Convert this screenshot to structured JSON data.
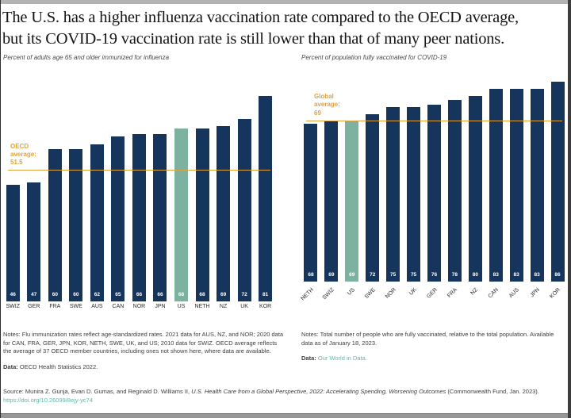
{
  "header": {
    "title_lines": [
      "The U.S. has a higher influenza vaccination rate compared to the OECD average,",
      "but its COVID-19 vaccination rate is still lower than that of many peer nations."
    ]
  },
  "colors": {
    "bar": "#16355c",
    "highlight": "#7db2a0",
    "average_line": "#e2a33b",
    "link": "#52bcab"
  },
  "chart_data": [
    {
      "type": "bar",
      "title": "Percent of adults age 65 and older immunized for influenza",
      "categories": [
        "SWIZ",
        "GER",
        "FRA",
        "SWE",
        "AUS",
        "CAN",
        "NOR",
        "JPN",
        "US",
        "NETH",
        "NZ",
        "UK",
        "KOR"
      ],
      "values": [
        46,
        47,
        60,
        60,
        62,
        65,
        66,
        66,
        68,
        68,
        69,
        72,
        81
      ],
      "highlight_category": "US",
      "average_value": 51.5,
      "average_label_lines": [
        "OECD",
        "average:",
        "51.5"
      ],
      "ylim": [
        0,
        88
      ],
      "grid": false,
      "legend": false,
      "value_label_position": "inside-bottom",
      "tick_rotation": 0
    },
    {
      "type": "bar",
      "title": "Percent of population fully vaccinated for COVID-19",
      "categories": [
        "NETH",
        "SWIZ",
        "US",
        "SWE",
        "NOR",
        "UK",
        "GER",
        "FRA",
        "NZ",
        "CAN",
        "AUS",
        "JPN",
        "KOR"
      ],
      "values": [
        68,
        69,
        69,
        72,
        75,
        75,
        76,
        78,
        80,
        83,
        83,
        83,
        86
      ],
      "highlight_category": "US",
      "average_value": 69,
      "average_label_lines": [
        "Global",
        "average:",
        "69"
      ],
      "ylim": [
        0,
        88
      ],
      "grid": false,
      "legend": false,
      "value_label_position": "inside-bottom",
      "tick_rotation": 45
    }
  ],
  "left_panel": {
    "subtitle": "Percent of adults age 65 and older immunized for influenza",
    "notes": "Notes: Flu immunization rates reflect age-standardized rates. 2021 data for AUS, NZ, and NOR; 2020 data for CAN, FRA, GER, JPN, KOR, NETH, SWE, UK, and US; 2010 data for SWIZ. OECD average reflects the average of 37 OECD member countries, including ones not shown here, where data are available.",
    "data_label": "Data:",
    "data_source": "OECD Health Statistics 2022."
  },
  "right_panel": {
    "subtitle": "Percent of population fully vaccinated for COVID-19",
    "notes": "Notes: Total number of people who are fully vaccinated, relative to the total population. Available data as of January 18, 2023.",
    "data_label": "Data:",
    "data_source": "Our World in Data."
  },
  "footer": {
    "source_prefix": "Source: Munira Z. Gunja, Evan D. Gumas, and Reginald D. Williams II, ",
    "source_title": "U.S. Health Care from a Global Perspective, 2022: Accelerating Spending, Worsening Outcomes",
    "source_suffix": " (Commonwealth Fund, Jan. 2023). ",
    "source_link": "https://doi.org/10.26099/8ejy-yc74"
  }
}
